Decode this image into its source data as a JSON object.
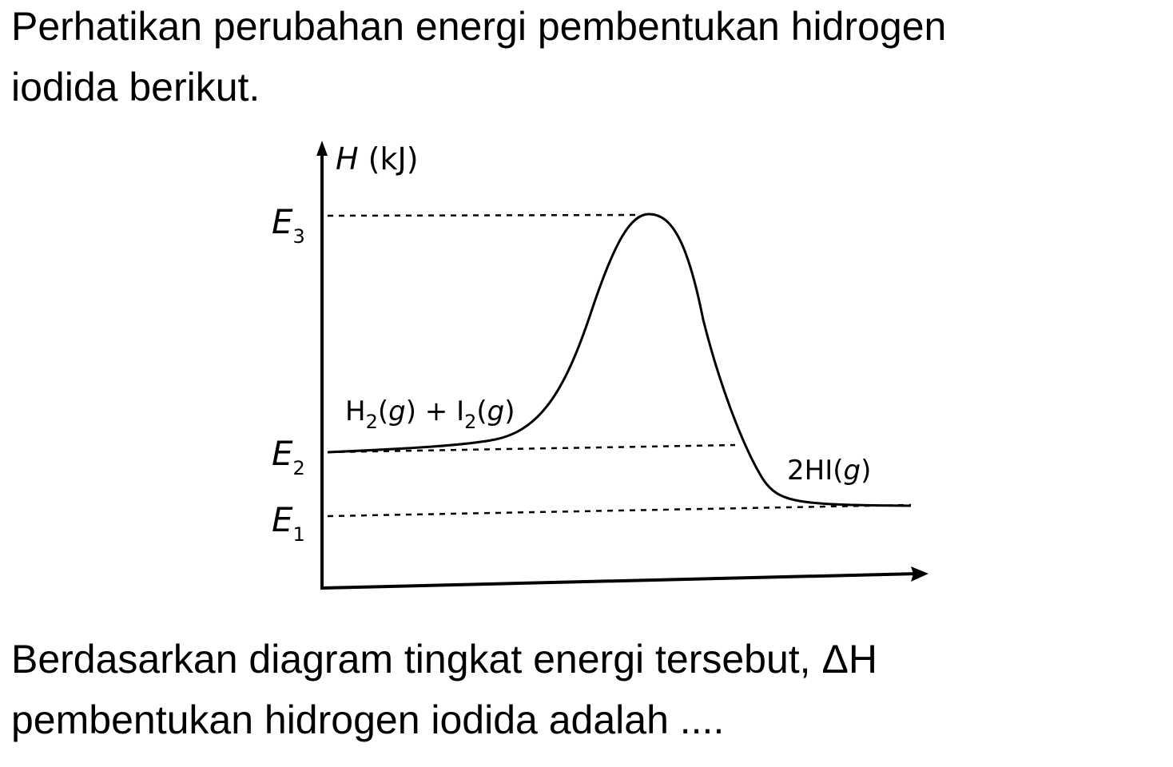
{
  "question": {
    "intro_lines": [
      "Perhatikan perubahan energi pembentukan hidrogen",
      "iodida berikut."
    ],
    "prompt_lines": [
      "Berdasarkan diagram tingkat energi tersebut, ΔH",
      "pembentukan hidrogen iodida adalah ...."
    ]
  },
  "diagram": {
    "y_axis_label": {
      "symbol": "H",
      "unit": "(kJ)"
    },
    "levels": [
      {
        "symbol": "E",
        "sub": "3"
      },
      {
        "symbol": "E",
        "sub": "2"
      },
      {
        "symbol": "E",
        "sub": "1"
      }
    ],
    "reactants": [
      "H",
      "2",
      "(",
      "g",
      ") + I",
      "2",
      "(",
      "g",
      ")"
    ],
    "products": [
      "2HI(",
      "g",
      ")"
    ]
  }
}
